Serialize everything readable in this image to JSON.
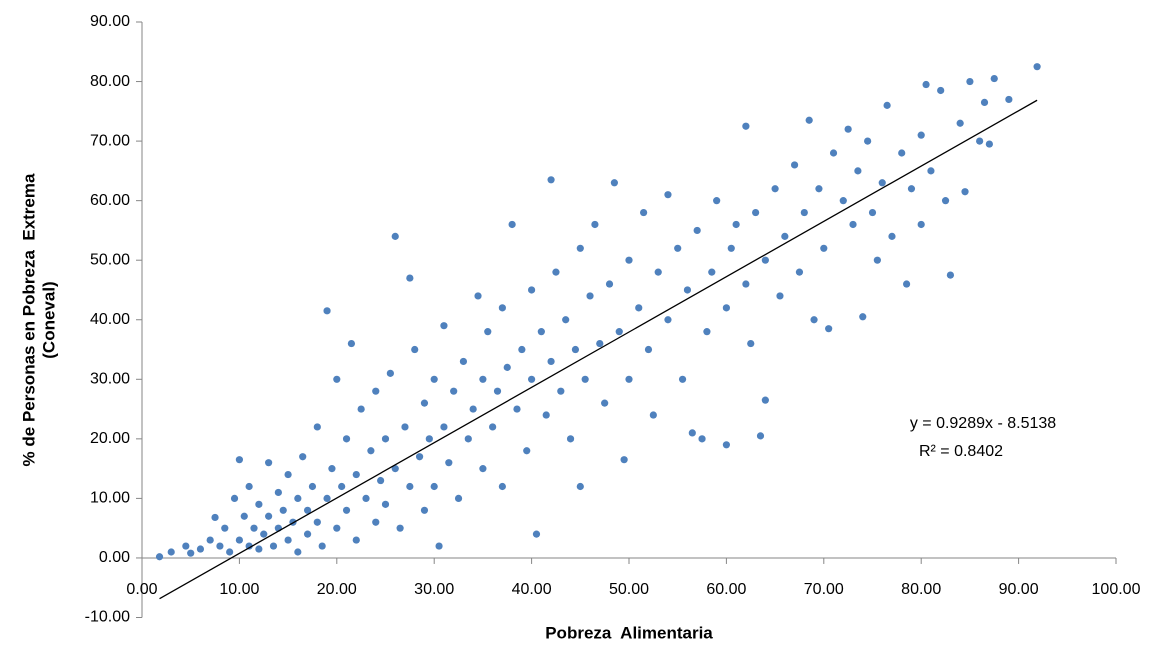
{
  "chart_data": {
    "type": "scatter",
    "xlabel": "Pobreza  Alimentaria",
    "ylabel": [
      "% de Personas en Pobreza  Extrema",
      "(Coneval)"
    ],
    "annotations": [
      "y = 0.9289x - 8.5138",
      "R² = 0.8402"
    ],
    "xlim": [
      0,
      100
    ],
    "ylim": [
      -10,
      90
    ],
    "xticks": [
      {
        "value": 0,
        "label": "0.00"
      },
      {
        "value": 10,
        "label": "10.00"
      },
      {
        "value": 20,
        "label": "20.00"
      },
      {
        "value": 30,
        "label": "30.00"
      },
      {
        "value": 40,
        "label": "40.00"
      },
      {
        "value": 50,
        "label": "50.00"
      },
      {
        "value": 60,
        "label": "60.00"
      },
      {
        "value": 70,
        "label": "70.00"
      },
      {
        "value": 80,
        "label": "80.00"
      },
      {
        "value": 90,
        "label": "90.00"
      },
      {
        "value": 100,
        "label": "100.00"
      }
    ],
    "yticks": [
      {
        "value": -10,
        "label": "-10.00"
      },
      {
        "value": 0,
        "label": "0.00"
      },
      {
        "value": 10,
        "label": "10.00"
      },
      {
        "value": 20,
        "label": "20.00"
      },
      {
        "value": 30,
        "label": "30.00"
      },
      {
        "value": 40,
        "label": "40.00"
      },
      {
        "value": 50,
        "label": "50.00"
      },
      {
        "value": 60,
        "label": "60.00"
      },
      {
        "value": 70,
        "label": "70.00"
      },
      {
        "value": 80,
        "label": "80.00"
      },
      {
        "value": 90,
        "label": "90.00"
      }
    ],
    "color": "#4f81bd",
    "x": [
      1.8,
      3,
      4.5,
      5,
      6,
      7,
      7.5,
      8,
      8.5,
      9,
      9.5,
      10,
      10,
      10.5,
      11,
      11,
      11.5,
      12,
      12,
      12.5,
      13,
      13,
      13.5,
      14,
      14,
      14.5,
      15,
      15,
      15.5,
      16,
      16,
      16.5,
      17,
      17,
      17.5,
      18,
      18,
      18.5,
      19,
      19,
      19.5,
      20,
      20,
      20.5,
      21,
      21,
      21.5,
      22,
      22,
      22.5,
      23,
      23.5,
      24,
      24,
      24.5,
      25,
      25,
      25.5,
      26,
      26,
      26.5,
      27,
      27.5,
      27.5,
      28,
      28.5,
      29,
      29,
      29.5,
      30,
      30,
      30.5,
      31,
      31,
      31.5,
      32,
      32.5,
      33,
      33.5,
      34,
      34.5,
      35,
      35,
      35.5,
      36,
      36.5,
      37,
      37,
      37.5,
      38,
      38.5,
      39,
      39.5,
      40,
      40,
      40.5,
      41,
      41.5,
      42,
      42,
      42.5,
      43,
      43.5,
      44,
      44.5,
      45,
      45,
      45.5,
      46,
      46.5,
      47,
      47.5,
      48,
      48.5,
      49,
      49.5,
      50,
      50,
      51,
      51.5,
      52,
      52.5,
      53,
      54,
      54,
      55,
      55.5,
      56,
      56.5,
      57,
      57.5,
      58,
      58.5,
      59,
      60,
      60,
      60.5,
      61,
      62,
      62,
      62.5,
      63,
      63.5,
      64,
      64,
      65,
      65.5,
      66,
      67,
      67.5,
      68,
      68.5,
      69,
      69.5,
      70,
      70.5,
      71,
      72,
      72.5,
      73,
      73.5,
      74,
      74.5,
      75,
      75.5,
      76,
      76.5,
      77,
      78,
      78.5,
      79,
      80,
      80,
      80.5,
      81,
      82,
      82.5,
      83,
      84,
      84.5,
      85,
      86,
      86.5,
      87,
      87.5,
      89,
      91.9
    ],
    "values": [
      0.2,
      1,
      2,
      0.8,
      1.5,
      3,
      6.8,
      2,
      5,
      1,
      10,
      16.5,
      3,
      7,
      2,
      12,
      5,
      1.5,
      9,
      4,
      16,
      7,
      2,
      11,
      5,
      8,
      3,
      14,
      6,
      1,
      10,
      17,
      4,
      8,
      12,
      22,
      6,
      2,
      41.5,
      10,
      15,
      5,
      30,
      12,
      8,
      20,
      36,
      14,
      3,
      25,
      10,
      18,
      6,
      28,
      13,
      20,
      9,
      31,
      15,
      54,
      5,
      22,
      47,
      12,
      35,
      17,
      8,
      26,
      20,
      30,
      12,
      2,
      39,
      22,
      16,
      28,
      10,
      33,
      20,
      25,
      44,
      15,
      30,
      38,
      22,
      28,
      12,
      42,
      32,
      56,
      25,
      35,
      18,
      30,
      45,
      4,
      38,
      24,
      63.5,
      33,
      48,
      28,
      40,
      20,
      35,
      52,
      12,
      30,
      44,
      56,
      36,
      26,
      46,
      63,
      38,
      16.5,
      50,
      30,
      42,
      58,
      35,
      24,
      48,
      40,
      61,
      52,
      30,
      45,
      21,
      55,
      20,
      38,
      48,
      60,
      42,
      19,
      52,
      56,
      72.5,
      46,
      36,
      58,
      20.5,
      26.5,
      50,
      62,
      44,
      54,
      66,
      48,
      58,
      73.5,
      40,
      62,
      52,
      38.5,
      68,
      60,
      72,
      56,
      65,
      40.5,
      70,
      58,
      50,
      63,
      76,
      54,
      68,
      46,
      62,
      71,
      56,
      79.5,
      65,
      78.5,
      60,
      47.5,
      73,
      61.5,
      80,
      70,
      76.5,
      69.5,
      80.5,
      77,
      82.5
    ],
    "trendline": {
      "color": "#000000",
      "x": [
        1.8,
        91.9
      ],
      "values": [
        -6.84,
        76.86
      ]
    }
  }
}
